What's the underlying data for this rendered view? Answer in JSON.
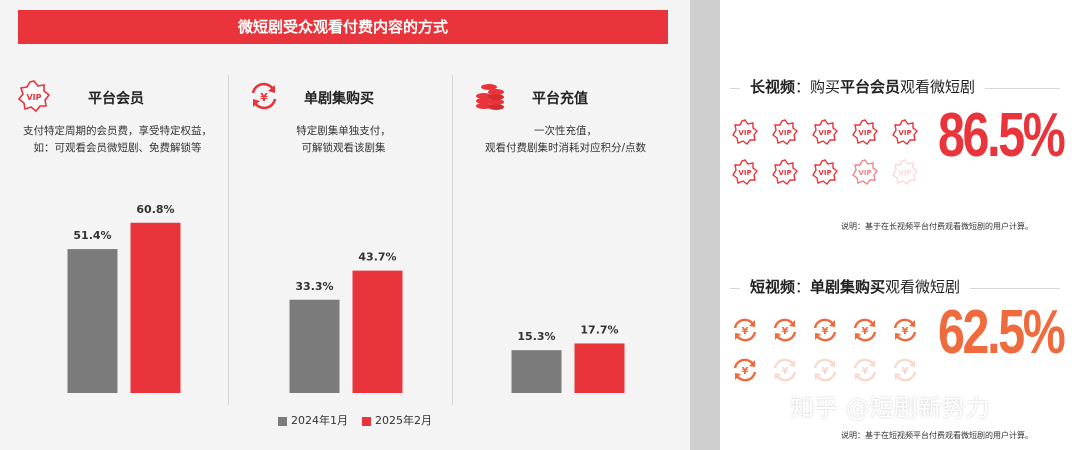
{
  "banner": {
    "title": "微短剧受众观看付费内容的方式"
  },
  "columns": [
    {
      "title": "平台会员",
      "icon": "vip-badge-icon",
      "desc_line1": "支付特定周期的会员费，享受特定权益，",
      "desc_line2": "如：可观看会员微短剧、免费解锁等"
    },
    {
      "title": "单剧集购买",
      "icon": "yen-cycle-icon",
      "desc_line1": "特定剧集单独支付，",
      "desc_line2": "可解锁观看该剧集"
    },
    {
      "title": "平台充值",
      "icon": "coin-stack-icon",
      "desc_line1": "一次性充值，",
      "desc_line2": "观看付费剧集时消耗对应积分/点数"
    }
  ],
  "chart_data": {
    "type": "bar",
    "categories": [
      "平台会员",
      "单剧集购买",
      "平台充值"
    ],
    "series": [
      {
        "name": "2024年1月",
        "values": [
          51.4,
          33.3,
          15.3
        ],
        "labels": [
          "51.4%",
          "33.3%",
          "15.3%"
        ]
      },
      {
        "name": "2025年2月",
        "values": [
          60.8,
          43.7,
          17.7
        ],
        "labels": [
          "60.8%",
          "43.7%",
          "17.7%"
        ]
      }
    ],
    "unit": "%",
    "colors": [
      "#7b7b7b",
      "#e8343a"
    ]
  },
  "legend": {
    "s1": "2024年1月",
    "s2": "2025年2月"
  },
  "long_video": {
    "prefix": "长视频",
    "mid": "：购买",
    "highlight": "平台会员",
    "suffix": "观看微短剧",
    "percent": "86.5%",
    "share": 0.865,
    "icon": "vip-badge-icon",
    "icon_color": "#e8343a",
    "note": "说明：基于在长视频平台付费观看微短剧的用户计算。"
  },
  "short_video": {
    "prefix": "短视频",
    "mid": "：",
    "highlight": "单剧集购买",
    "suffix": "观看微短剧",
    "percent": "62.5%",
    "share": 0.625,
    "icon": "yen-cycle-icon",
    "icon_color": "#ef6a3c",
    "note": "说明：基于在短视频平台付费观看微短剧的用户计算。"
  },
  "watermark": "知乎 @短剧新势力"
}
